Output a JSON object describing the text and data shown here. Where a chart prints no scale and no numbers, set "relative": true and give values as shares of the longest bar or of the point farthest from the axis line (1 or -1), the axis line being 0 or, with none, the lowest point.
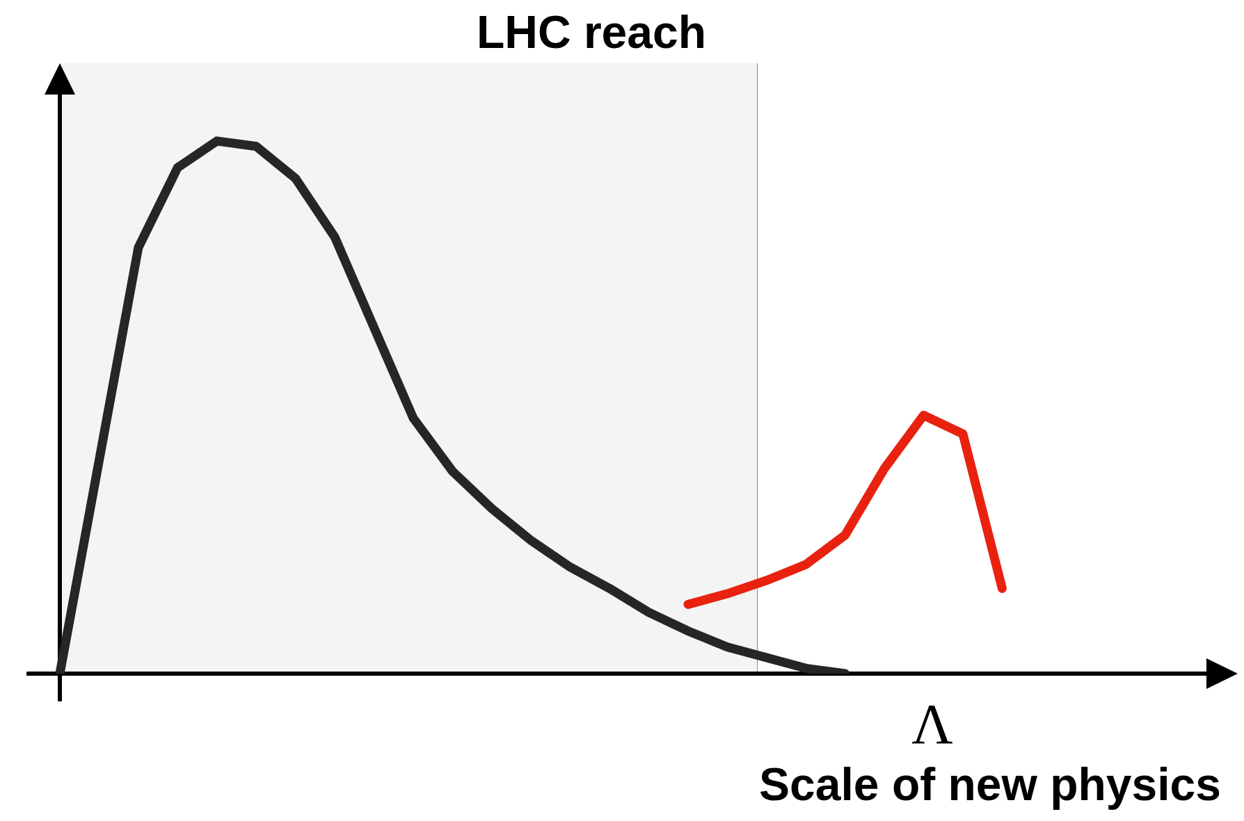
{
  "chart_data": {
    "type": "line",
    "relative": true,
    "title": "LHC reach",
    "xlabel": "Scale of new physics",
    "annotations": [
      "Λ"
    ],
    "categories": [
      null,
      null,
      null,
      null,
      null,
      null,
      null,
      null,
      null,
      null,
      null,
      null,
      null,
      null,
      null,
      null,
      null,
      null,
      null,
      null,
      null,
      null,
      null,
      null,
      null,
      null,
      null,
      null,
      null,
      null,
      null
    ],
    "series": [
      {
        "color": "#262626",
        "values": [
          0,
          0.4,
          0.8,
          0.95,
          1,
          0.99,
          0.93,
          0.82,
          0.65,
          0.48,
          0.38,
          0.31,
          0.25,
          0.2,
          0.16,
          0.115,
          0.08,
          0.05,
          0.03,
          0.01,
          0,
          null,
          null,
          null,
          null,
          null,
          null,
          null,
          null,
          null,
          null
        ]
      },
      {
        "color": "#e8220f",
        "values": [
          null,
          null,
          null,
          null,
          null,
          null,
          null,
          null,
          null,
          null,
          null,
          null,
          null,
          null,
          null,
          null,
          0.13,
          0.15,
          0.175,
          0.205,
          0.26,
          0.385,
          0.485,
          0.45,
          0.16,
          null,
          null,
          null,
          null,
          null,
          null
        ]
      }
    ]
  }
}
